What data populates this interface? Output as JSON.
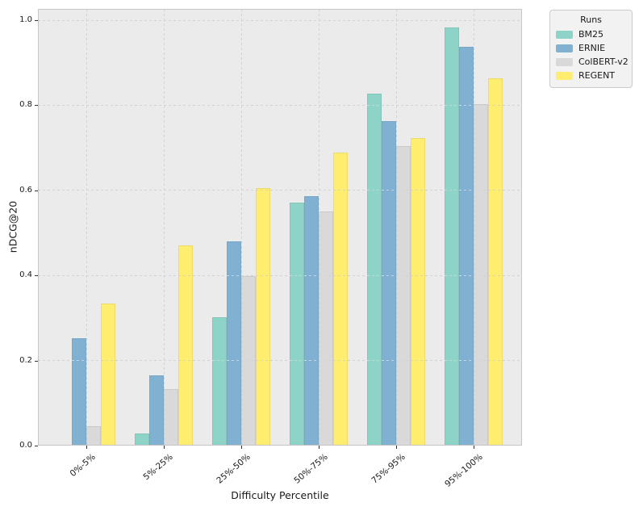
{
  "figure": {
    "background": "#ffffff",
    "plot_background": "#ebebeb",
    "grid_color": "#d2d2d2",
    "tick_color": "#333333"
  },
  "legend": {
    "title": "Runs",
    "entries": [
      "BM25",
      "ERNIE",
      "ColBERT-v2",
      "REGENT"
    ]
  },
  "chart_data": {
    "type": "bar",
    "title": "",
    "xlabel": "Difficulty Percentile",
    "ylabel": "nDCG@20",
    "categories": [
      "0%-5%",
      "5%-25%",
      "25%-50%",
      "50%-75%",
      "75%-95%",
      "95%-100%"
    ],
    "series": [
      {
        "name": "BM25",
        "color": "#8dd3c7",
        "values": [
          0.0,
          0.029,
          0.302,
          0.572,
          0.828,
          0.983
        ]
      },
      {
        "name": "ERNIE",
        "color": "#80b1d3",
        "values": [
          0.253,
          0.166,
          0.481,
          0.587,
          0.763,
          0.938
        ]
      },
      {
        "name": "ColBERT-v2",
        "color": "#d9d9d9",
        "values": [
          0.046,
          0.133,
          0.399,
          0.55,
          0.704,
          0.803
        ]
      },
      {
        "name": "REGENT",
        "color": "#ffed6f",
        "values": [
          0.334,
          0.471,
          0.605,
          0.689,
          0.723,
          0.864
        ]
      }
    ],
    "ylim": [
      0.0,
      1.0
    ],
    "yticks": [
      0.0,
      0.2,
      0.4,
      0.6,
      0.8,
      1.0
    ],
    "ytick_labels": [
      "0.0",
      "0.2",
      "0.4",
      "0.6",
      "0.8",
      "1.0"
    ],
    "grid": "dashed",
    "grid_over_bars": true,
    "legend_position": "upper-right-outside",
    "legend_title": "Runs"
  }
}
